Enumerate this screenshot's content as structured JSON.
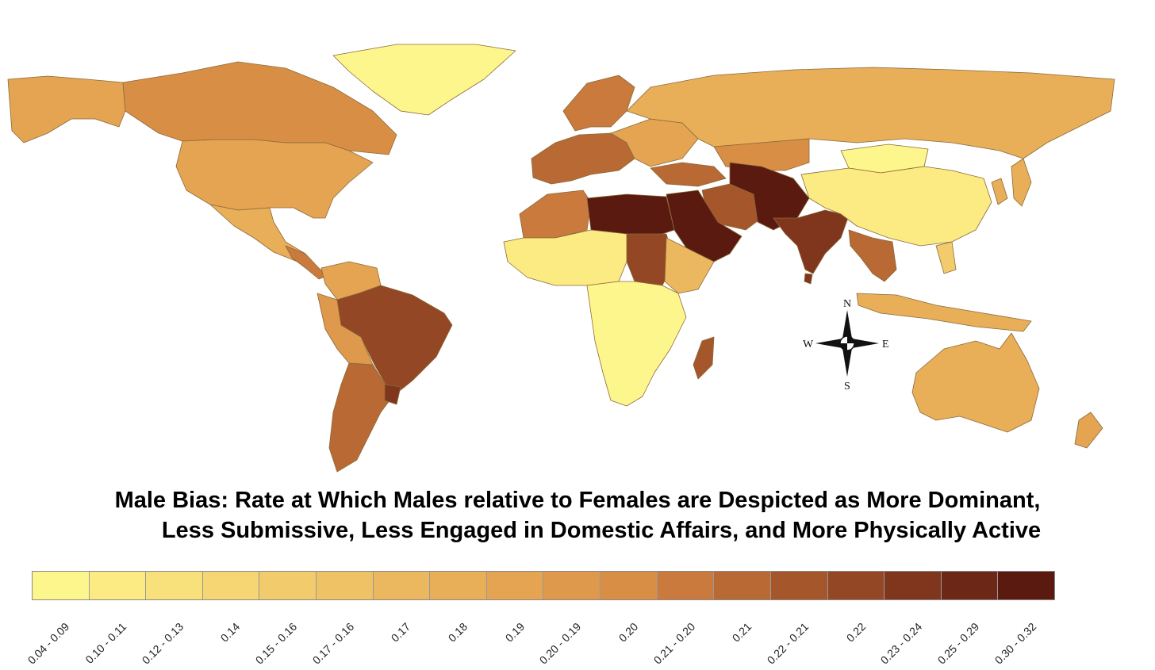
{
  "title": {
    "line1": "Male Bias: Rate at Which Males relative to Females are Despicted as More Dominant,",
    "line2": "Less Submissive, Less Engaged in Domestic Affairs, and More Physically Active"
  },
  "compass": {
    "n": "N",
    "s": "S",
    "e": "E",
    "w": "W"
  },
  "legend": [
    {
      "label": "0.04 - 0.09",
      "color": "#fdf68d"
    },
    {
      "label": "0.10 - 0.11",
      "color": "#fbeb82"
    },
    {
      "label": "0.12 - 0.13",
      "color": "#f8e07a"
    },
    {
      "label": "0.14",
      "color": "#f5d673"
    },
    {
      "label": "0.15 - 0.16",
      "color": "#f2cc6c"
    },
    {
      "label": "0.17 - 0.16",
      "color": "#efc265"
    },
    {
      "label": "0.17",
      "color": "#ecb85f"
    },
    {
      "label": "0.18",
      "color": "#e8ae58"
    },
    {
      "label": "0.19",
      "color": "#e4a452"
    },
    {
      "label": "0.20 - 0.19",
      "color": "#df994c"
    },
    {
      "label": "0.20",
      "color": "#d98e46"
    },
    {
      "label": "0.21 - 0.20",
      "color": "#c97a3c"
    },
    {
      "label": "0.21",
      "color": "#b86934"
    },
    {
      "label": "0.22 - 0.21",
      "color": "#a5572b"
    },
    {
      "label": "0.22",
      "color": "#934724"
    },
    {
      "label": "0.23 - 0.24",
      "color": "#7f361c"
    },
    {
      "label": "0.25 - 0.29",
      "color": "#6d2716"
    },
    {
      "label": "0.30 - 0.32",
      "color": "#5a1a10"
    }
  ]
}
